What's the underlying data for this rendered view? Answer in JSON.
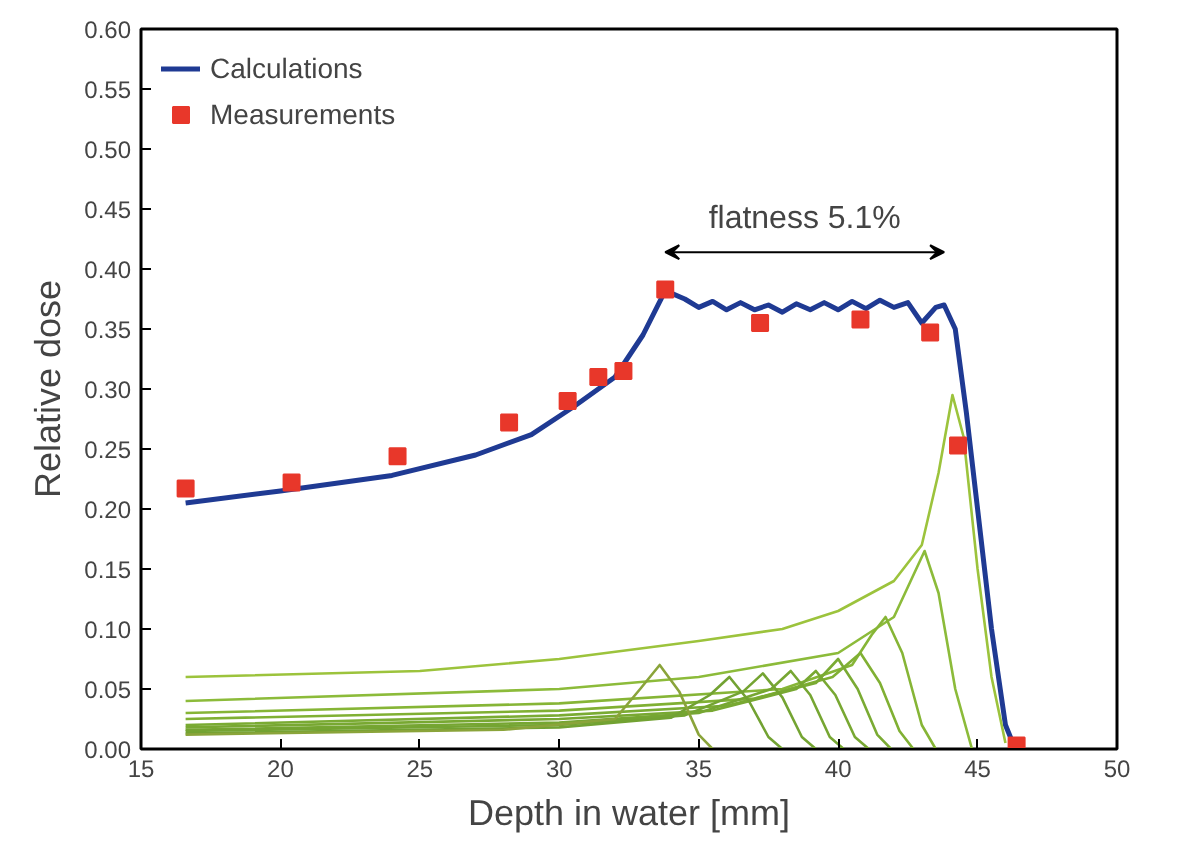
{
  "chart_data": {
    "type": "line",
    "xlabel": "Depth in water [mm]",
    "ylabel": "Relative dose",
    "xlim": [
      15,
      50
    ],
    "xticks": [
      15,
      20,
      25,
      30,
      35,
      40,
      45,
      50
    ],
    "ylim": [
      0,
      0.6
    ],
    "yticks": [
      {
        "value": 0,
        "label": "0.00"
      },
      {
        "value": 0.05,
        "label": "0.05"
      },
      {
        "value": 0.1,
        "label": "0.10"
      },
      {
        "value": 0.15,
        "label": "0.15"
      },
      {
        "value": 0.2,
        "label": "0.20"
      },
      {
        "value": 0.25,
        "label": "0.25"
      },
      {
        "value": 0.3,
        "label": "0.30"
      },
      {
        "value": 0.35,
        "label": "0.35"
      },
      {
        "value": 0.4,
        "label": "0.40"
      },
      {
        "value": 0.45,
        "label": "0.45"
      },
      {
        "value": 0.5,
        "label": "0.50"
      },
      {
        "value": 0.55,
        "label": "0.55"
      },
      {
        "value": 0.6,
        "label": "0.60"
      }
    ],
    "grid": false,
    "legend": "top left",
    "line_style": "solid",
    "annotations": [
      "flatness 5.1%"
    ],
    "series": [
      {
        "name": "Calculations",
        "color": "#1f3a93",
        "x": [
          16.6,
          20,
          24,
          27,
          29,
          30.5,
          32,
          33,
          33.8,
          34.5,
          35,
          35.5,
          36,
          36.5,
          37,
          37.5,
          38,
          38.5,
          39,
          39.5,
          40,
          40.5,
          41,
          41.5,
          42,
          42.5,
          43,
          43.5,
          43.8,
          44.2,
          44.6,
          45,
          45.5,
          46,
          46.3
        ],
        "values": [
          0.205,
          0.215,
          0.228,
          0.245,
          0.262,
          0.285,
          0.31,
          0.345,
          0.382,
          0.375,
          0.368,
          0.373,
          0.366,
          0.372,
          0.366,
          0.37,
          0.364,
          0.371,
          0.366,
          0.372,
          0.366,
          0.373,
          0.367,
          0.374,
          0.368,
          0.372,
          0.355,
          0.368,
          0.37,
          0.35,
          0.28,
          0.2,
          0.1,
          0.02,
          0.003
        ]
      },
      {
        "color": "#9cc33c",
        "x": [
          16.6,
          25,
          30,
          35,
          38,
          40,
          42,
          43,
          43.6,
          44.1,
          44.5,
          45,
          45.5,
          46
        ],
        "values": [
          0.06,
          0.065,
          0.075,
          0.09,
          0.1,
          0.115,
          0.14,
          0.17,
          0.23,
          0.295,
          0.26,
          0.15,
          0.06,
          0.005
        ]
      },
      {
        "color": "#8cbb3a",
        "x": [
          16.6,
          30,
          35,
          40,
          42,
          42.6,
          43.1,
          43.6,
          44.2,
          44.8
        ],
        "values": [
          0.04,
          0.05,
          0.06,
          0.08,
          0.11,
          0.14,
          0.165,
          0.13,
          0.05,
          0
        ]
      },
      {
        "color": "#86b536",
        "x": [
          16.6,
          30,
          38,
          40.5,
          41.2,
          41.7,
          42.3,
          43,
          43.5
        ],
        "values": [
          0.03,
          0.038,
          0.05,
          0.07,
          0.095,
          0.11,
          0.08,
          0.02,
          0
        ]
      },
      {
        "color": "#80b033",
        "x": [
          16.6,
          30,
          37,
          39.8,
          40.8,
          41.5,
          42.2,
          42.7
        ],
        "values": [
          0.025,
          0.032,
          0.042,
          0.06,
          0.08,
          0.055,
          0.015,
          0
        ]
      },
      {
        "color": "#7aab33",
        "x": [
          16.6,
          30,
          36,
          39.2,
          40,
          40.7,
          41.4,
          41.9
        ],
        "values": [
          0.02,
          0.028,
          0.036,
          0.055,
          0.075,
          0.05,
          0.012,
          0
        ]
      },
      {
        "color": "#78a832",
        "x": [
          16.6,
          30,
          35.5,
          38.5,
          39.2,
          39.9,
          40.6,
          41.1
        ],
        "values": [
          0.018,
          0.025,
          0.032,
          0.05,
          0.065,
          0.045,
          0.01,
          0
        ]
      },
      {
        "color": "#76a632",
        "x": [
          16.6,
          30,
          35,
          37.6,
          38.3,
          39,
          39.7,
          40.2
        ],
        "values": [
          0.016,
          0.022,
          0.03,
          0.05,
          0.065,
          0.045,
          0.01,
          0
        ]
      },
      {
        "color": "#74a432",
        "x": [
          16.6,
          30,
          34.5,
          36.6,
          37.3,
          38,
          38.7,
          39.2
        ],
        "values": [
          0.015,
          0.02,
          0.028,
          0.048,
          0.063,
          0.043,
          0.01,
          0
        ]
      },
      {
        "color": "#72a232",
        "x": [
          16.6,
          30,
          34,
          35.4,
          36.1,
          36.8,
          37.5,
          38
        ],
        "values": [
          0.013,
          0.018,
          0.026,
          0.045,
          0.06,
          0.04,
          0.01,
          0
        ]
      },
      {
        "color": "#8aa43a",
        "x": [
          16.6,
          28,
          32,
          32.9,
          33.6,
          34.3,
          35,
          35.5
        ],
        "values": [
          0.012,
          0.016,
          0.025,
          0.05,
          0.07,
          0.048,
          0.012,
          0
        ]
      },
      {
        "name": "Measurements",
        "type": "scatter",
        "marker": "square",
        "color": "#e8372a",
        "x": [
          16.6,
          20.4,
          24.2,
          28.2,
          30.3,
          31.4,
          32.3,
          33.8,
          37.2,
          40.8,
          43.3,
          44.3,
          46.4
        ],
        "values": [
          0.217,
          0.222,
          0.244,
          0.272,
          0.29,
          0.31,
          0.315,
          0.383,
          0.355,
          0.358,
          0.347,
          0.253,
          0.003
        ]
      }
    ]
  }
}
